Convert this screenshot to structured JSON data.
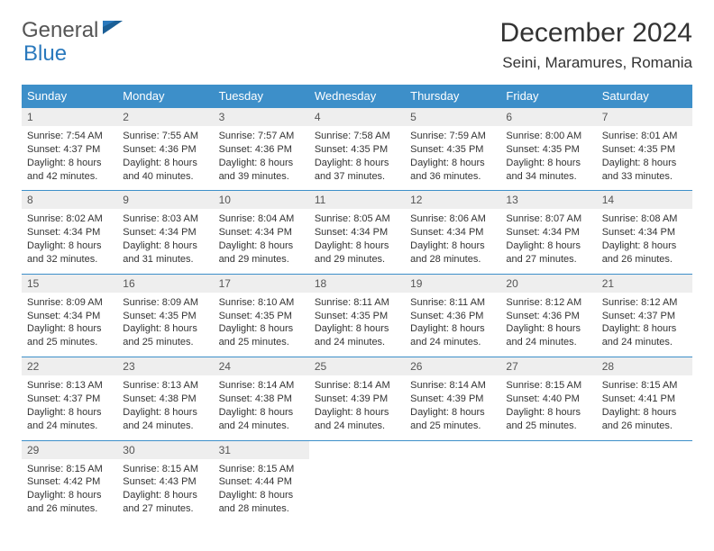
{
  "brand": {
    "part1": "General",
    "part2": "Blue"
  },
  "title": "December 2024",
  "location": "Seini, Maramures, Romania",
  "colors": {
    "header_bg": "#3d8fc9",
    "header_text": "#ffffff",
    "daynum_bg": "#eeeeee",
    "border": "#3d8fc9",
    "brand_gray": "#555555",
    "brand_blue": "#2a79bd",
    "background": "#ffffff"
  },
  "typography": {
    "title_fontsize": 30,
    "location_fontsize": 17,
    "header_fontsize": 13,
    "daynum_fontsize": 12,
    "cell_fontsize": 11
  },
  "day_headers": [
    "Sunday",
    "Monday",
    "Tuesday",
    "Wednesday",
    "Thursday",
    "Friday",
    "Saturday"
  ],
  "weeks": [
    [
      {
        "n": "1",
        "sr": "Sunrise: 7:54 AM",
        "ss": "Sunset: 4:37 PM",
        "dl": "Daylight: 8 hours and 42 minutes."
      },
      {
        "n": "2",
        "sr": "Sunrise: 7:55 AM",
        "ss": "Sunset: 4:36 PM",
        "dl": "Daylight: 8 hours and 40 minutes."
      },
      {
        "n": "3",
        "sr": "Sunrise: 7:57 AM",
        "ss": "Sunset: 4:36 PM",
        "dl": "Daylight: 8 hours and 39 minutes."
      },
      {
        "n": "4",
        "sr": "Sunrise: 7:58 AM",
        "ss": "Sunset: 4:35 PM",
        "dl": "Daylight: 8 hours and 37 minutes."
      },
      {
        "n": "5",
        "sr": "Sunrise: 7:59 AM",
        "ss": "Sunset: 4:35 PM",
        "dl": "Daylight: 8 hours and 36 minutes."
      },
      {
        "n": "6",
        "sr": "Sunrise: 8:00 AM",
        "ss": "Sunset: 4:35 PM",
        "dl": "Daylight: 8 hours and 34 minutes."
      },
      {
        "n": "7",
        "sr": "Sunrise: 8:01 AM",
        "ss": "Sunset: 4:35 PM",
        "dl": "Daylight: 8 hours and 33 minutes."
      }
    ],
    [
      {
        "n": "8",
        "sr": "Sunrise: 8:02 AM",
        "ss": "Sunset: 4:34 PM",
        "dl": "Daylight: 8 hours and 32 minutes."
      },
      {
        "n": "9",
        "sr": "Sunrise: 8:03 AM",
        "ss": "Sunset: 4:34 PM",
        "dl": "Daylight: 8 hours and 31 minutes."
      },
      {
        "n": "10",
        "sr": "Sunrise: 8:04 AM",
        "ss": "Sunset: 4:34 PM",
        "dl": "Daylight: 8 hours and 29 minutes."
      },
      {
        "n": "11",
        "sr": "Sunrise: 8:05 AM",
        "ss": "Sunset: 4:34 PM",
        "dl": "Daylight: 8 hours and 29 minutes."
      },
      {
        "n": "12",
        "sr": "Sunrise: 8:06 AM",
        "ss": "Sunset: 4:34 PM",
        "dl": "Daylight: 8 hours and 28 minutes."
      },
      {
        "n": "13",
        "sr": "Sunrise: 8:07 AM",
        "ss": "Sunset: 4:34 PM",
        "dl": "Daylight: 8 hours and 27 minutes."
      },
      {
        "n": "14",
        "sr": "Sunrise: 8:08 AM",
        "ss": "Sunset: 4:34 PM",
        "dl": "Daylight: 8 hours and 26 minutes."
      }
    ],
    [
      {
        "n": "15",
        "sr": "Sunrise: 8:09 AM",
        "ss": "Sunset: 4:34 PM",
        "dl": "Daylight: 8 hours and 25 minutes."
      },
      {
        "n": "16",
        "sr": "Sunrise: 8:09 AM",
        "ss": "Sunset: 4:35 PM",
        "dl": "Daylight: 8 hours and 25 minutes."
      },
      {
        "n": "17",
        "sr": "Sunrise: 8:10 AM",
        "ss": "Sunset: 4:35 PM",
        "dl": "Daylight: 8 hours and 25 minutes."
      },
      {
        "n": "18",
        "sr": "Sunrise: 8:11 AM",
        "ss": "Sunset: 4:35 PM",
        "dl": "Daylight: 8 hours and 24 minutes."
      },
      {
        "n": "19",
        "sr": "Sunrise: 8:11 AM",
        "ss": "Sunset: 4:36 PM",
        "dl": "Daylight: 8 hours and 24 minutes."
      },
      {
        "n": "20",
        "sr": "Sunrise: 8:12 AM",
        "ss": "Sunset: 4:36 PM",
        "dl": "Daylight: 8 hours and 24 minutes."
      },
      {
        "n": "21",
        "sr": "Sunrise: 8:12 AM",
        "ss": "Sunset: 4:37 PM",
        "dl": "Daylight: 8 hours and 24 minutes."
      }
    ],
    [
      {
        "n": "22",
        "sr": "Sunrise: 8:13 AM",
        "ss": "Sunset: 4:37 PM",
        "dl": "Daylight: 8 hours and 24 minutes."
      },
      {
        "n": "23",
        "sr": "Sunrise: 8:13 AM",
        "ss": "Sunset: 4:38 PM",
        "dl": "Daylight: 8 hours and 24 minutes."
      },
      {
        "n": "24",
        "sr": "Sunrise: 8:14 AM",
        "ss": "Sunset: 4:38 PM",
        "dl": "Daylight: 8 hours and 24 minutes."
      },
      {
        "n": "25",
        "sr": "Sunrise: 8:14 AM",
        "ss": "Sunset: 4:39 PM",
        "dl": "Daylight: 8 hours and 24 minutes."
      },
      {
        "n": "26",
        "sr": "Sunrise: 8:14 AM",
        "ss": "Sunset: 4:39 PM",
        "dl": "Daylight: 8 hours and 25 minutes."
      },
      {
        "n": "27",
        "sr": "Sunrise: 8:15 AM",
        "ss": "Sunset: 4:40 PM",
        "dl": "Daylight: 8 hours and 25 minutes."
      },
      {
        "n": "28",
        "sr": "Sunrise: 8:15 AM",
        "ss": "Sunset: 4:41 PM",
        "dl": "Daylight: 8 hours and 26 minutes."
      }
    ],
    [
      {
        "n": "29",
        "sr": "Sunrise: 8:15 AM",
        "ss": "Sunset: 4:42 PM",
        "dl": "Daylight: 8 hours and 26 minutes."
      },
      {
        "n": "30",
        "sr": "Sunrise: 8:15 AM",
        "ss": "Sunset: 4:43 PM",
        "dl": "Daylight: 8 hours and 27 minutes."
      },
      {
        "n": "31",
        "sr": "Sunrise: 8:15 AM",
        "ss": "Sunset: 4:44 PM",
        "dl": "Daylight: 8 hours and 28 minutes."
      },
      null,
      null,
      null,
      null
    ]
  ]
}
